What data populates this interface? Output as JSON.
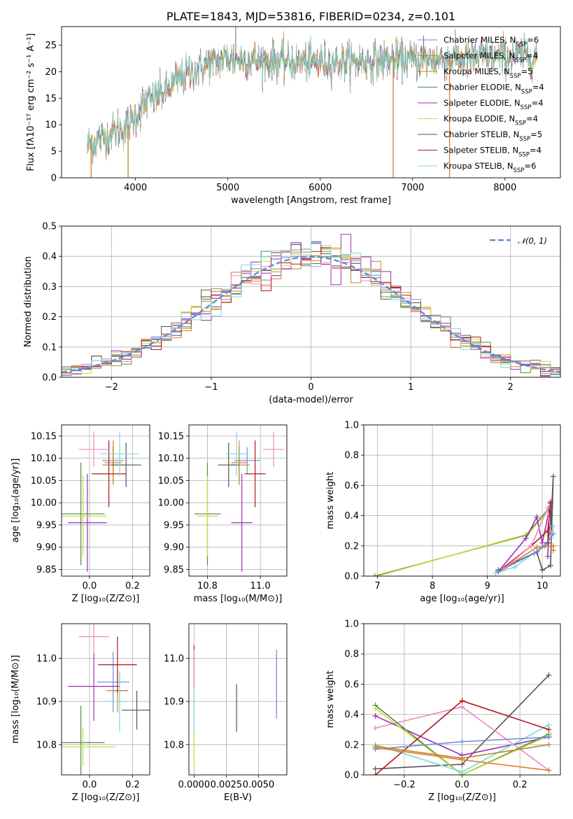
{
  "colors": {
    "chabrier_miles": "#6a8bd8",
    "salpeter_miles": "#e07b2a",
    "kroupa_miles": "#b8862b",
    "chabrier_elodie": "#4a8a4a",
    "salpeter_elodie": "#9b2fae",
    "kroupa_elodie": "#c8dc3a",
    "chabrier_stelib": "#555555",
    "salpeter_stelib": "#b01818",
    "kroupa_stelib": "#7fd8d8",
    "pink": "#e88ac0",
    "normal": "#5a8fd6"
  },
  "chart_data": [
    {
      "id": "spectrum",
      "type": "line",
      "title": "PLATE=1843, MJD=53816, FIBERID=0234, z=0.101",
      "xlabel": "wavelength [Angstrom, rest frame]",
      "ylabel": "Flux [fλ10⁻¹⁷ erg cm⁻² s⁻¹ A⁻¹]",
      "xlim": [
        3200,
        8600
      ],
      "ylim": [
        0,
        28.5
      ],
      "xticks": [
        4000,
        5000,
        6000,
        7000,
        8000
      ],
      "yticks": [
        0,
        5,
        10,
        15,
        20,
        25
      ],
      "legend_position": "top-right",
      "legend": [
        {
          "label": "Chabrier MILES, N",
          "sub": "SSP",
          "suffix": "=6",
          "color_key": "chabrier_miles"
        },
        {
          "label": "Salpeter MILES, N",
          "sub": "SSP",
          "suffix": "=4",
          "color_key": "salpeter_miles"
        },
        {
          "label": "Kroupa MILES, N",
          "sub": "SSP",
          "suffix": "=5",
          "color_key": "kroupa_miles"
        },
        {
          "label": "Chabrier ELODIE, N",
          "sub": "SSP",
          "suffix": "=4",
          "color_key": "chabrier_elodie"
        },
        {
          "label": "Salpeter ELODIE, N",
          "sub": "SSP",
          "suffix": "=4",
          "color_key": "salpeter_elodie"
        },
        {
          "label": "Kroupa ELODIE, N",
          "sub": "SSP",
          "suffix": "=4",
          "color_key": "kroupa_elodie"
        },
        {
          "label": "Chabrier STELIB, N",
          "sub": "SSP",
          "suffix": "=5",
          "color_key": "chabrier_stelib"
        },
        {
          "label": "Salpeter STELIB, N",
          "sub": "SSP",
          "suffix": "=4",
          "color_key": "salpeter_stelib"
        },
        {
          "label": "Kroupa STELIB, N",
          "sub": "SSP",
          "suffix": "=6",
          "color_key": "kroupa_stelib"
        }
      ],
      "continuum_x": [
        3480,
        3700,
        3900,
        4100,
        4300,
        4500,
        4800,
        5000,
        5200,
        5500,
        6000,
        6500,
        7000,
        7500,
        8000,
        8350
      ],
      "continuum_y": [
        6.2,
        8.0,
        9.5,
        14.0,
        16.0,
        19.0,
        21.5,
        22.5,
        22.2,
        22.0,
        21.8,
        22.0,
        22.2,
        22.5,
        22.8,
        23.0
      ],
      "dips": [
        {
          "x": 3520,
          "y": 0,
          "color_key": "salpeter_miles"
        },
        {
          "x": 3920,
          "y": 0,
          "color_key": "kroupa_miles"
        },
        {
          "x": 5890,
          "y": 19.5,
          "color_key": "kroupa_stelib"
        },
        {
          "x": 6790,
          "y": 0,
          "color_key": "kroupa_miles"
        },
        {
          "x": 7400,
          "y": 0,
          "color_key": "salpeter_miles"
        }
      ],
      "spikes": [
        {
          "x": 5085,
          "y": 28.5,
          "color_key": "chabrier_stelib"
        },
        {
          "x": 7120,
          "y": 26.8,
          "color_key": "chabrier_stelib"
        }
      ]
    },
    {
      "id": "residuals",
      "type": "line",
      "xlabel": "(data-model)/error",
      "ylabel": "Normed distribution",
      "xlim": [
        -2.5,
        2.5
      ],
      "ylim": [
        0,
        0.5
      ],
      "xticks": [
        -2,
        -1,
        0,
        1,
        2
      ],
      "yticks": [
        0.0,
        0.1,
        0.2,
        0.3,
        0.4,
        0.5
      ],
      "grid": true,
      "bin_width": 0.1,
      "legend_position": "top-right",
      "legend_label": "𝒩(0, 1)",
      "curve_label": "N(0,1)"
    },
    {
      "id": "age_vs_z",
      "type": "scatter",
      "xlabel": "Z [log₁₀(Z/Z⊙)]",
      "ylabel": "age  [log₁₀(age/yr)]",
      "xlim": [
        -0.13,
        0.28
      ],
      "ylim": [
        9.835,
        10.175
      ],
      "xticks": [
        0.0,
        0.2
      ],
      "yticks": [
        9.85,
        9.9,
        9.95,
        10.0,
        10.05,
        10.1,
        10.15
      ],
      "grid": true,
      "points": [
        {
          "x": 0.11,
          "y": 10.095,
          "xerr": 0.05,
          "yerr": 0.03,
          "color_key": "chabrier_miles"
        },
        {
          "x": 0.11,
          "y": 10.09,
          "xerr": 0.04,
          "yerr": 0.05,
          "color_key": "salpeter_miles"
        },
        {
          "x": 0.11,
          "y": 10.085,
          "xerr": 0.05,
          "yerr": 0.04,
          "color_key": "kroupa_miles"
        },
        {
          "x": -0.04,
          "y": 9.975,
          "xerr": 0.11,
          "yerr": 0.115,
          "color_key": "chabrier_elodie"
        },
        {
          "x": -0.01,
          "y": 9.955,
          "xerr": 0.09,
          "yerr": 0.11,
          "color_key": "salpeter_elodie"
        },
        {
          "x": -0.03,
          "y": 9.97,
          "xerr": 0.11,
          "yerr": 0.09,
          "color_key": "kroupa_elodie"
        },
        {
          "x": 0.17,
          "y": 10.085,
          "xerr": 0.07,
          "yerr": 0.05,
          "color_key": "chabrier_stelib"
        },
        {
          "x": 0.09,
          "y": 10.065,
          "xerr": 0.08,
          "yerr": 0.075,
          "color_key": "salpeter_stelib"
        },
        {
          "x": 0.14,
          "y": 10.11,
          "xerr": 0.09,
          "yerr": 0.05,
          "color_key": "kroupa_stelib"
        },
        {
          "x": 0.02,
          "y": 10.12,
          "xerr": 0.07,
          "yerr": 0.04,
          "color_key": "pink"
        }
      ]
    },
    {
      "id": "age_vs_mass",
      "type": "scatter",
      "xlabel": "mass [log₁₀(M/M⊙)]",
      "ylabel": "",
      "xlim": [
        10.73,
        11.1
      ],
      "ylim": [
        9.835,
        10.175
      ],
      "xticks": [
        10.8,
        11.0
      ],
      "yticks": [
        9.85,
        9.9,
        9.95,
        10.0,
        10.05,
        10.1,
        10.15
      ],
      "grid": true,
      "points": [
        {
          "x": 10.95,
          "y": 10.095,
          "xerr": 0.05,
          "yerr": 0.03,
          "color_key": "chabrier_miles"
        },
        {
          "x": 10.92,
          "y": 10.09,
          "xerr": 0.03,
          "yerr": 0.05,
          "color_key": "salpeter_miles"
        },
        {
          "x": 10.92,
          "y": 10.085,
          "xerr": 0.04,
          "yerr": 0.04,
          "color_key": "kroupa_miles"
        },
        {
          "x": 10.8,
          "y": 9.975,
          "xerr": 0.05,
          "yerr": 0.115,
          "color_key": "chabrier_elodie"
        },
        {
          "x": 10.93,
          "y": 9.955,
          "xerr": 0.04,
          "yerr": 0.11,
          "color_key": "salpeter_elodie"
        },
        {
          "x": 10.8,
          "y": 9.97,
          "xerr": 0.04,
          "yerr": 0.09,
          "color_key": "kroupa_elodie"
        },
        {
          "x": 10.88,
          "y": 10.085,
          "xerr": 0.04,
          "yerr": 0.05,
          "color_key": "chabrier_stelib"
        },
        {
          "x": 10.98,
          "y": 10.065,
          "xerr": 0.04,
          "yerr": 0.075,
          "color_key": "salpeter_stelib"
        },
        {
          "x": 10.91,
          "y": 10.11,
          "xerr": 0.04,
          "yerr": 0.05,
          "color_key": "kroupa_stelib"
        },
        {
          "x": 11.05,
          "y": 10.12,
          "xerr": 0.04,
          "yerr": 0.04,
          "color_key": "pink"
        }
      ]
    },
    {
      "id": "weight_vs_age",
      "type": "line",
      "xlabel": "age  [log₁₀(age/yr)]",
      "ylabel": "mass weight",
      "xlim": [
        6.75,
        10.33
      ],
      "ylim": [
        0,
        1.0
      ],
      "xticks": [
        7,
        8,
        9,
        10
      ],
      "yticks": [
        0.0,
        0.2,
        0.4,
        0.6,
        0.8,
        1.0
      ],
      "grid": true,
      "series": [
        {
          "color_key": "chabrier_elodie",
          "x": [
            6.95,
            9.7,
            10.15,
            10.15
          ],
          "y": [
            0.0,
            0.27,
            0.46,
            0.28
          ]
        },
        {
          "color_key": "kroupa_elodie",
          "x": [
            7.0,
            9.75,
            10.15,
            10.1
          ],
          "y": [
            0.0,
            0.28,
            0.45,
            0.27
          ]
        },
        {
          "color_key": "chabrier_stelib",
          "x": [
            9.2,
            9.9,
            10.0,
            10.15,
            10.2,
            10.15
          ],
          "y": [
            0.04,
            0.16,
            0.04,
            0.07,
            0.66,
            0.3
          ]
        },
        {
          "color_key": "salpeter_elodie",
          "x": [
            9.2,
            9.7,
            9.9,
            10.0,
            10.15,
            10.1
          ],
          "y": [
            0.03,
            0.25,
            0.39,
            0.22,
            0.48,
            0.13
          ]
        },
        {
          "color_key": "kroupa_stelib",
          "x": [
            9.15,
            9.5,
            9.95,
            10.15,
            10.2
          ],
          "y": [
            0.02,
            0.06,
            0.18,
            0.25,
            0.33
          ]
        },
        {
          "color_key": "salpeter_stelib",
          "x": [
            9.2,
            9.8,
            10.1,
            10.15,
            10.1
          ],
          "y": [
            0.03,
            0.2,
            0.3,
            0.49,
            0.22
          ]
        },
        {
          "color_key": "chabrier_miles",
          "x": [
            9.2,
            9.85,
            10.05,
            10.2
          ],
          "y": [
            0.03,
            0.15,
            0.2,
            0.28
          ]
        },
        {
          "color_key": "salpeter_miles",
          "x": [
            9.3,
            9.9,
            10.2,
            10.2
          ],
          "y": [
            0.05,
            0.19,
            0.2,
            0.17
          ]
        },
        {
          "color_key": "pink",
          "x": [
            9.3,
            9.8,
            10.1,
            10.15
          ],
          "y": [
            0.05,
            0.2,
            0.45,
            0.3
          ]
        }
      ]
    },
    {
      "id": "mass_vs_z",
      "type": "scatter",
      "xlabel": "Z [log₁₀(Z/Z⊙)]",
      "ylabel": "mass [log₁₀(M/M⊙)]",
      "xlim": [
        -0.13,
        0.28
      ],
      "ylim": [
        10.73,
        11.08
      ],
      "xticks": [
        0.0,
        0.2
      ],
      "yticks": [
        10.8,
        10.9,
        11.0
      ],
      "grid": true,
      "points": [
        {
          "x": 0.11,
          "y": 10.945,
          "xerr": 0.075,
          "yerr": 0.07,
          "color_key": "chabrier_miles"
        },
        {
          "x": 0.13,
          "y": 10.925,
          "xerr": 0.05,
          "yerr": 0.05,
          "color_key": "salpeter_miles"
        },
        {
          "x": 0.14,
          "y": 10.925,
          "xerr": 0.04,
          "yerr": 0.04,
          "color_key": "kroupa_miles"
        },
        {
          "x": -0.04,
          "y": 10.805,
          "xerr": 0.11,
          "yerr": 0.085,
          "color_key": "chabrier_elodie"
        },
        {
          "x": 0.02,
          "y": 10.935,
          "xerr": 0.12,
          "yerr": 0.08,
          "color_key": "salpeter_elodie"
        },
        {
          "x": -0.03,
          "y": 10.795,
          "xerr": 0.15,
          "yerr": 0.045,
          "color_key": "kroupa_elodie"
        },
        {
          "x": 0.22,
          "y": 10.88,
          "xerr": 0.07,
          "yerr": 0.045,
          "color_key": "chabrier_stelib"
        },
        {
          "x": 0.13,
          "y": 10.985,
          "xerr": 0.09,
          "yerr": 0.065,
          "color_key": "salpeter_stelib"
        },
        {
          "x": 0.14,
          "y": 10.9,
          "xerr": 0.07,
          "yerr": 0.07,
          "color_key": "kroupa_stelib"
        },
        {
          "x": 0.02,
          "y": 11.05,
          "xerr": 0.07,
          "yerr": 0.04,
          "color_key": "pink"
        }
      ]
    },
    {
      "id": "mass_vs_ebv",
      "type": "scatter",
      "xlabel": "E(B-V)",
      "ylabel": "",
      "xlim": [
        -0.0004,
        0.0072
      ],
      "ylim": [
        10.73,
        11.08
      ],
      "xticks": [
        0.0,
        0.0025,
        0.005
      ],
      "xtick_labels": [
        "0.0000",
        "0.0025",
        "0.0050"
      ],
      "yticks": [
        10.8,
        10.9,
        11.0
      ],
      "grid": true,
      "points": [
        {
          "x": 0.0,
          "y": 10.98,
          "xerr": 0,
          "yerr": 0.05,
          "color_key": "salpeter_stelib"
        },
        {
          "x": 0.0,
          "y": 10.92,
          "xerr": 0,
          "yerr": 0.1,
          "color_key": "pink"
        },
        {
          "x": 0.0,
          "y": 10.8,
          "xerr": 0,
          "yerr": 0.05,
          "color_key": "kroupa_elodie"
        },
        {
          "x": 0.0,
          "y": 10.88,
          "xerr": 0,
          "yerr": 0.05,
          "color_key": "kroupa_stelib"
        },
        {
          "x": 0.0033,
          "y": 10.885,
          "xerr": 0,
          "yerr": 0.055,
          "color_key": "chabrier_stelib"
        },
        {
          "x": 0.0064,
          "y": 10.94,
          "xerr": 0,
          "yerr": 0.08,
          "color_key": "chabrier_miles"
        }
      ]
    },
    {
      "id": "weight_vs_z",
      "type": "line",
      "xlabel": "Z [log₁₀(Z/Z⊙)]",
      "ylabel": "mass weight",
      "xlim": [
        -0.34,
        0.34
      ],
      "ylim": [
        0,
        1.0
      ],
      "xticks": [
        -0.2,
        0.0,
        0.2
      ],
      "yticks": [
        0.0,
        0.2,
        0.4,
        0.6,
        0.8,
        1.0
      ],
      "grid": true,
      "series": [
        {
          "color_key": "chabrier_stelib",
          "x": [
            -0.3,
            0.0,
            0.3
          ],
          "y": [
            0.04,
            0.07,
            0.66
          ]
        },
        {
          "color_key": "pink",
          "x": [
            -0.3,
            0.0,
            0.3
          ],
          "y": [
            0.31,
            0.45,
            0.03
          ]
        },
        {
          "color_key": "salpeter_elodie",
          "x": [
            -0.3,
            0.0,
            0.3
          ],
          "y": [
            0.39,
            0.13,
            0.25
          ]
        },
        {
          "color_key": "chabrier_elodie",
          "x": [
            -0.3,
            0.0,
            0.3
          ],
          "y": [
            0.46,
            0.0,
            0.27
          ]
        },
        {
          "color_key": "kroupa_elodie",
          "x": [
            -0.3,
            0.0,
            0.3
          ],
          "y": [
            0.44,
            0.0,
            0.26
          ]
        },
        {
          "color_key": "kroupa_stelib",
          "x": [
            -0.3,
            0.0,
            0.3
          ],
          "y": [
            0.2,
            0.02,
            0.33
          ]
        },
        {
          "color_key": "salpeter_stelib",
          "x": [
            -0.3,
            0.0,
            0.3
          ],
          "y": [
            0.0,
            0.49,
            0.3
          ]
        },
        {
          "color_key": "chabrier_miles",
          "x": [
            -0.3,
            0.0,
            0.3
          ],
          "y": [
            0.17,
            0.22,
            0.25
          ]
        },
        {
          "color_key": "salpeter_miles",
          "x": [
            -0.3,
            0.0,
            0.3
          ],
          "y": [
            0.18,
            0.1,
            0.03
          ]
        },
        {
          "color_key": "kroupa_miles",
          "x": [
            -0.3,
            0.0,
            0.3
          ],
          "y": [
            0.19,
            0.11,
            0.2
          ]
        }
      ]
    }
  ]
}
